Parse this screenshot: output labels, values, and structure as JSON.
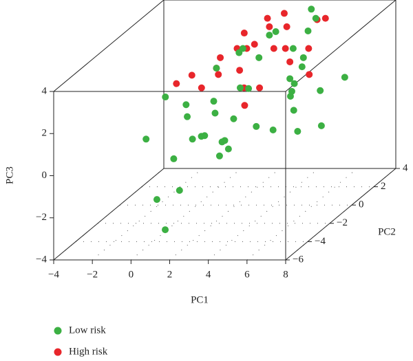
{
  "chart_data": {
    "type": "scatter3d",
    "xlabel": "PC1",
    "ylabel": "PC2",
    "zlabel": "PC3",
    "xlim": [
      -4,
      8
    ],
    "xticks": [
      {
        "value": -4,
        "label": "−4"
      },
      {
        "value": -2,
        "label": "−2"
      },
      0,
      2,
      4,
      6,
      8
    ],
    "ylim": [
      -6,
      4
    ],
    "yticks": [
      {
        "value": -6,
        "label": "−6"
      },
      {
        "value": -4,
        "label": "−4"
      },
      {
        "value": -2,
        "label": "−2"
      },
      0,
      2,
      4
    ],
    "zlim": [
      -4,
      4
    ],
    "zticks": [
      {
        "value": -4,
        "label": "−4"
      },
      {
        "value": -2,
        "label": "−2"
      },
      0,
      2,
      4
    ],
    "grid": true,
    "legend": "bottom-left",
    "series": [
      {
        "name": "High risk",
        "color": "#e8262b",
        "x": [
          2.5,
          5.5,
          1.5,
          2.8,
          3.5,
          1.2,
          1,
          -0.5,
          0.3,
          2.4,
          4.5,
          4,
          5.8,
          3,
          2.2,
          0.8,
          3.4,
          4.8,
          2.6,
          3.8,
          2,
          1.3,
          5.2,
          1.1,
          3.6
        ],
        "y": [
          2,
          2,
          1,
          3,
          2,
          0,
          0,
          -1,
          -1,
          1,
          3,
          1,
          0,
          -1,
          0,
          -1,
          1,
          0,
          2,
          -1,
          1,
          2,
          1,
          0,
          -2
        ],
        "z": [
          4,
          4,
          3,
          3.8,
          3.6,
          3,
          2.5,
          2.2,
          2.6,
          3.2,
          3.5,
          3,
          2.2,
          2,
          2.4,
          2,
          3,
          2.8,
          3.6,
          2,
          3,
          3.3,
          3,
          2.2,
          1.6
        ]
      },
      {
        "name": "Low risk",
        "color": "#3cb043",
        "x": [
          -1.5,
          0.2,
          0.8,
          1.2,
          2.0,
          0.5,
          2.3,
          5.2,
          7.0,
          6.5,
          5.8,
          5.0,
          4.5,
          4.2,
          3.0,
          1.5,
          0.9,
          -0.5,
          0,
          1,
          1.8,
          2.6,
          3.5,
          4.2,
          4.6,
          5.0,
          5.5,
          6.0,
          5.6,
          4.8,
          3.8,
          2.8,
          2.0,
          1.2,
          1.6,
          3.2,
          4.4,
          5.4,
          4.9,
          3.6,
          2.5,
          3.9,
          2.1
        ],
        "y": [
          -2,
          -4,
          -3,
          -5,
          -1,
          -3,
          -2,
          0,
          -1,
          2,
          1,
          0,
          -1,
          -2,
          -3,
          -1,
          -2,
          -2,
          -1,
          0,
          1,
          2,
          1,
          3,
          2,
          2,
          0,
          -1,
          -1,
          0,
          -2,
          -1,
          -2,
          -3,
          1,
          0,
          1,
          -1,
          0,
          -3,
          -4,
          -4,
          -3
        ],
        "z": [
          0,
          -2,
          -2,
          -3,
          -0.5,
          -0.5,
          -0.8,
          -0.5,
          0.2,
          1.2,
          1,
          0.5,
          0,
          0.6,
          0.3,
          0.8,
          0,
          2,
          1.2,
          2.5,
          3,
          3.2,
          3.8,
          4,
          3.4,
          4,
          3,
          3,
          2.2,
          2,
          2.4,
          2,
          1.8,
          1.5,
          2.8,
          3,
          3,
          1.6,
          1.4,
          1.4,
          1,
          0.4,
          0.6
        ]
      }
    ]
  }
}
